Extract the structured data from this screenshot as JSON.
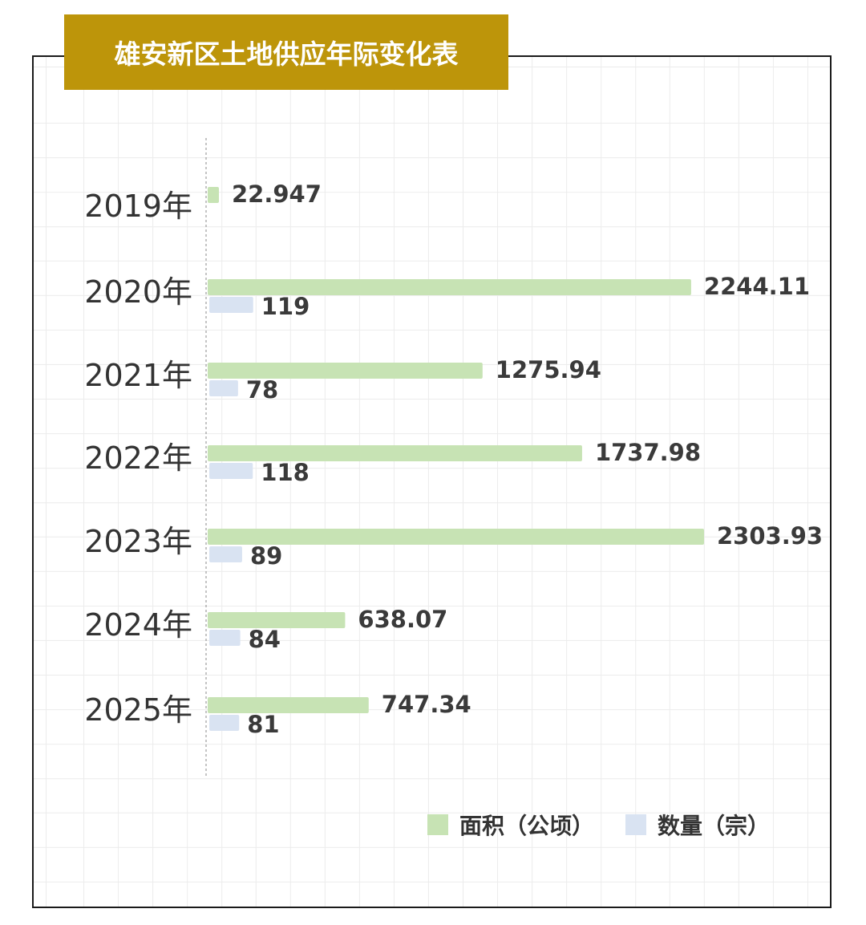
{
  "chart_data": {
    "type": "bar",
    "orientation": "horizontal",
    "title": "雄安新区土地供应年际变化表",
    "categories": [
      "2019年",
      "2020年",
      "2021年",
      "2022年",
      "2023年",
      "2024年",
      "2025年"
    ],
    "series": [
      {
        "name": "面积（公顷）",
        "color": "#c7e3b4",
        "values": [
          22.947,
          2244.11,
          1275.94,
          1737.98,
          2303.93,
          638.07,
          747.34
        ],
        "labels": [
          "22.947",
          "2244.11",
          "1275.94",
          "1737.98",
          "2303.93",
          "638.07",
          "747.34"
        ]
      },
      {
        "name": "数量（宗）",
        "color": "#d9e3f2",
        "values": [
          null,
          119,
          78,
          118,
          89,
          84,
          81
        ],
        "labels": [
          "",
          "119",
          "78",
          "118",
          "89",
          "84",
          "81"
        ]
      }
    ],
    "legend_position": "bottom-right",
    "grid": true
  }
}
